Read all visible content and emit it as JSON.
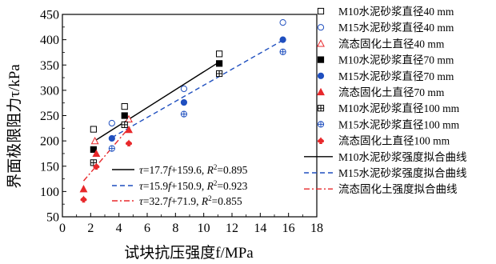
{
  "chart_data": {
    "type": "scatter",
    "xlabel": "试块抗压强度f/MPa",
    "ylabel": "界面极限阻力τ/kPa",
    "xlim": [
      0,
      18
    ],
    "ylim": [
      50,
      450
    ],
    "xticks": [
      0,
      2,
      4,
      6,
      8,
      10,
      12,
      14,
      16,
      18
    ],
    "yticks": [
      50,
      100,
      150,
      200,
      250,
      300,
      350,
      400,
      450
    ],
    "grid": false,
    "legend_position": "right",
    "series": [
      {
        "name": "M10水泥砂浆直径40 mm",
        "marker": "square-open",
        "color": "#000000",
        "x": [
          2.2,
          4.4,
          11.1
        ],
        "y": [
          223,
          268,
          372
        ]
      },
      {
        "name": "M15水泥砂浆直径40 mm",
        "marker": "circle-open",
        "color": "#1f4fbf",
        "x": [
          3.5,
          8.6,
          15.6
        ],
        "y": [
          235,
          303,
          434
        ]
      },
      {
        "name": "流态固化土直径40 mm",
        "marker": "triangle-open",
        "color": "#e8282b",
        "x": [
          2.3,
          4.7
        ],
        "y": [
          200,
          243
        ]
      },
      {
        "name": "M10水泥砂浆直径70 mm",
        "marker": "square-filled",
        "color": "#000000",
        "x": [
          2.2,
          4.4,
          11.1
        ],
        "y": [
          183,
          250,
          353
        ]
      },
      {
        "name": "M15水泥砂浆直径70 mm",
        "marker": "circle-filled",
        "color": "#1f4fbf",
        "x": [
          3.5,
          8.6,
          15.6
        ],
        "y": [
          205,
          276,
          400
        ]
      },
      {
        "name": "流态固化土直径70 mm",
        "marker": "triangle-filled",
        "color": "#e8282b",
        "x": [
          1.5,
          2.4,
          4.7
        ],
        "y": [
          105,
          175,
          222
        ]
      },
      {
        "name": "M10水泥砂浆直径100 mm",
        "marker": "square-cross",
        "color": "#000000",
        "x": [
          2.2,
          4.4,
          11.1
        ],
        "y": [
          157,
          232,
          333
        ]
      },
      {
        "name": "M15水泥砂浆直径100 mm",
        "marker": "circle-cross",
        "color": "#1f4fbf",
        "x": [
          3.5,
          8.6,
          15.6
        ],
        "y": [
          185,
          253,
          376
        ]
      },
      {
        "name": "流态固化土直径100 mm",
        "marker": "spade",
        "color": "#e8282b",
        "x": [
          1.5,
          2.4,
          4.7
        ],
        "y": [
          85,
          150,
          196
        ]
      }
    ],
    "fits": [
      {
        "name": "M10水泥砂浆强度拟合曲线",
        "style": "solid",
        "color": "#000000",
        "x_range": [
          2.2,
          11.1
        ],
        "slope": 17.7,
        "intercept": 159.6,
        "eq_prefix": "=17.7",
        "eq_mid": "+159.6, ",
        "eq_r2": "=0.895"
      },
      {
        "name": "M15水泥砂浆强度拟合曲线",
        "style": "dashed",
        "color": "#1f4fbf",
        "x_range": [
          3.5,
          15.6
        ],
        "slope": 15.9,
        "intercept": 150.9,
        "eq_prefix": "=15.9",
        "eq_mid": "+150.9, ",
        "eq_r2": "=0.923"
      },
      {
        "name": "流态固化土强度拟合曲线",
        "style": "dashdot",
        "color": "#e8282b",
        "x_range": [
          1.5,
          4.7
        ],
        "slope": 32.7,
        "intercept": 71.9,
        "eq_prefix": "=32.7",
        "eq_mid": "+71.9, ",
        "eq_r2": "=0.855"
      }
    ]
  }
}
